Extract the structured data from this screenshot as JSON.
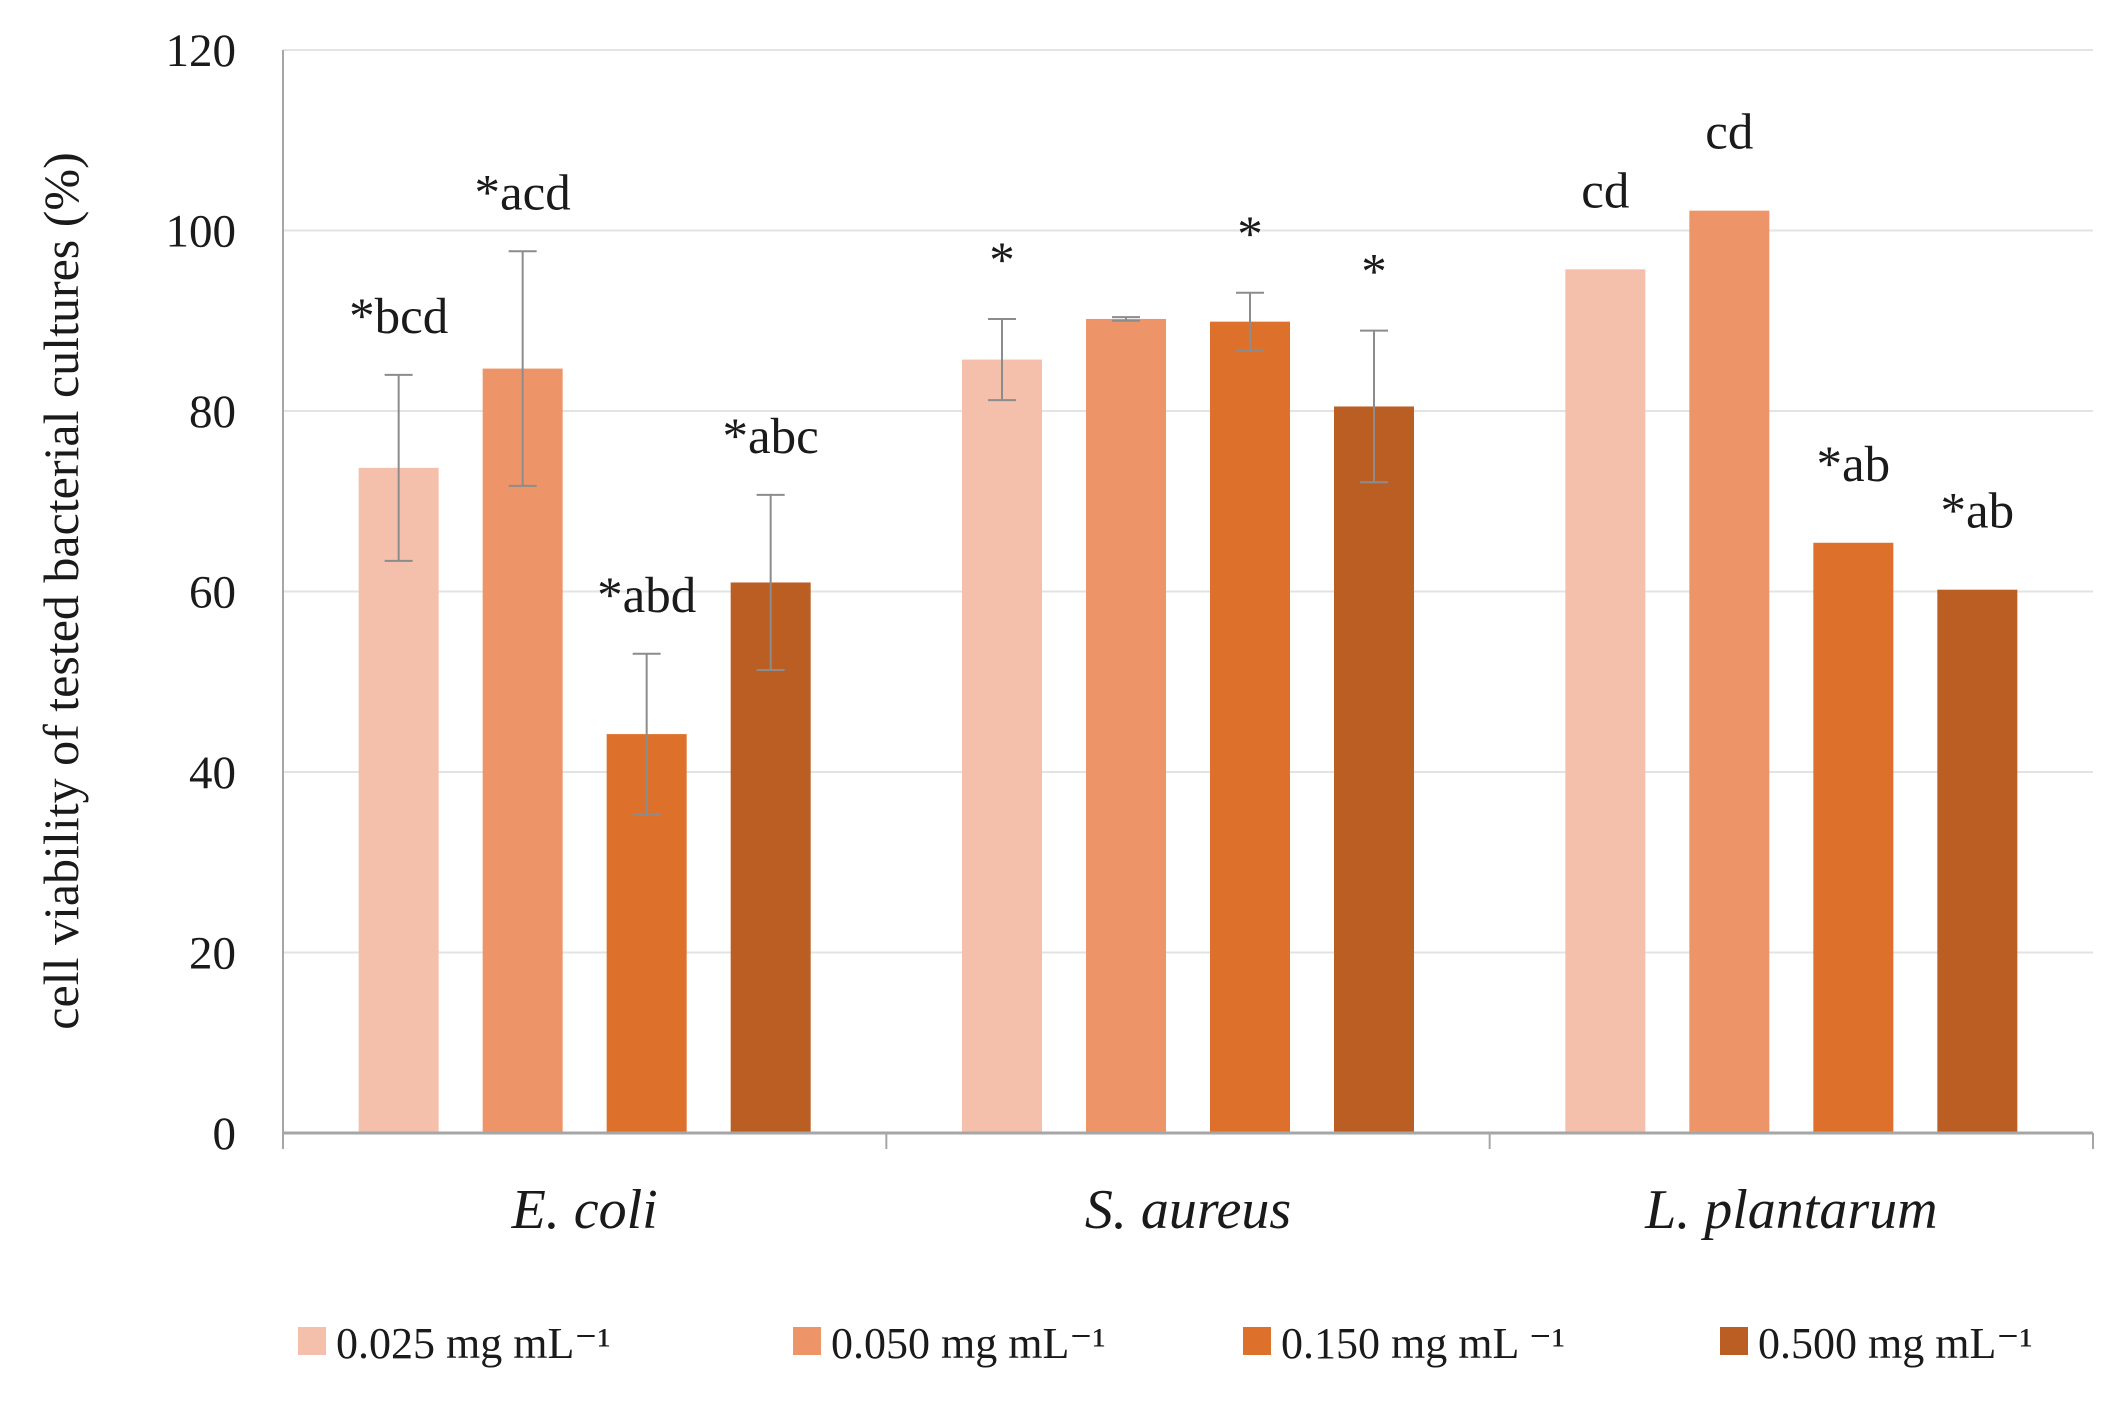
{
  "chart_data": {
    "type": "bar",
    "title": "",
    "xlabel": "",
    "ylabel": "cell viability of tested bacterial cultures  (%)",
    "ylim": [
      0,
      120
    ],
    "yticks": [
      0,
      20,
      40,
      60,
      80,
      100,
      120
    ],
    "grid": true,
    "legend_position": "bottom",
    "categories": [
      "E. coli",
      "S. aureus",
      "L. plantarum"
    ],
    "series": [
      {
        "name": "0.025 mg mL⁻¹",
        "color": "#f4c0ab",
        "values": [
          73.7,
          85.7,
          95.7
        ],
        "errors": [
          10.3,
          4.5,
          null
        ],
        "labels": [
          "*bcd",
          "*",
          "cd"
        ]
      },
      {
        "name": "0.050 mg mL⁻¹",
        "color": "#ed9569",
        "values": [
          84.7,
          90.2,
          102.2
        ],
        "errors": [
          13,
          0.2,
          null
        ],
        "labels": [
          "*acd",
          "",
          "cd"
        ]
      },
      {
        "name": "0.150 mg mL ⁻¹",
        "color": "#dd712b",
        "values": [
          44.2,
          89.9,
          65.4
        ],
        "errors": [
          8.9,
          3.2,
          null
        ],
        "labels": [
          "*abd",
          "*",
          "*ab"
        ]
      },
      {
        "name": "0.500 mg mL⁻¹",
        "color": "#bb5e23",
        "values": [
          61.0,
          80.5,
          60.2
        ],
        "errors": [
          9.7,
          8.4,
          null
        ],
        "labels": [
          "*abc",
          "*",
          "*ab"
        ]
      }
    ]
  }
}
